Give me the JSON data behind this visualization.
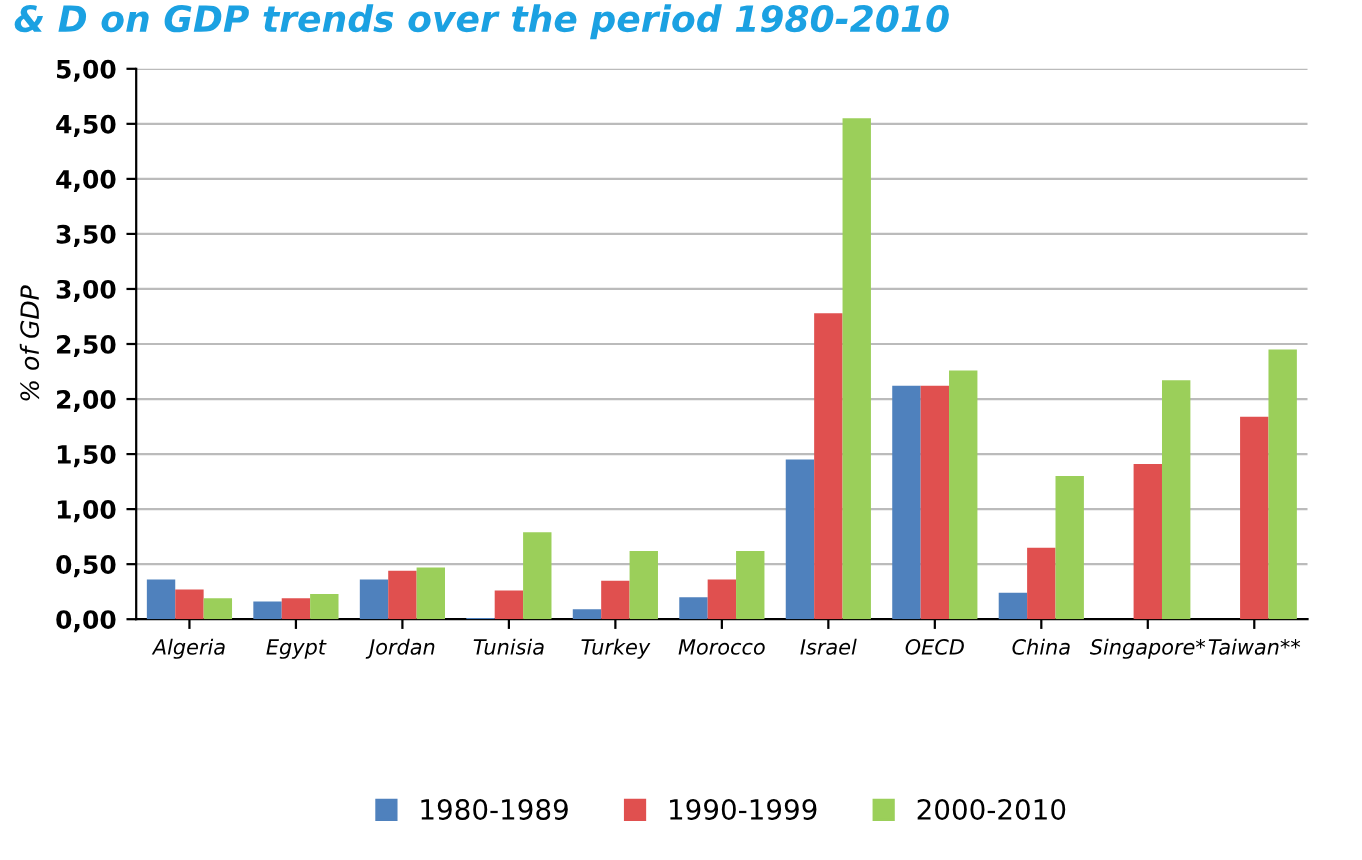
{
  "chart_data": {
    "type": "bar",
    "title": "& D on GDP trends over the period 1980-2010",
    "ylabel": "% of GDP",
    "categories": [
      "Algeria",
      "Egypt",
      "Jordan",
      "Tunisia",
      "Turkey",
      "Morocco",
      "Israel",
      "OECD",
      "China",
      "Singapore*",
      "Taiwan**"
    ],
    "series": [
      {
        "name": "1980-1989",
        "color": "#4f81bd",
        "values": [
          0.36,
          0.16,
          0.36,
          0.01,
          0.09,
          0.2,
          1.45,
          2.12,
          0.24,
          null,
          null
        ]
      },
      {
        "name": "1990-1999",
        "color": "#e0504f",
        "values": [
          0.27,
          0.19,
          0.44,
          0.26,
          0.35,
          0.36,
          2.78,
          2.12,
          0.65,
          1.41,
          1.84
        ]
      },
      {
        "name": "2000-2010",
        "color": "#9bcf5a",
        "values": [
          0.19,
          0.23,
          0.47,
          0.79,
          0.62,
          0.62,
          4.55,
          2.26,
          1.3,
          2.17,
          2.45
        ]
      }
    ],
    "ylim": [
      0,
      5
    ],
    "yticks": [
      {
        "value": 0,
        "label": "0,00"
      },
      {
        "value": 0.5,
        "label": "0,50"
      },
      {
        "value": 1,
        "label": "1,00"
      },
      {
        "value": 1.5,
        "label": "1,50"
      },
      {
        "value": 2,
        "label": "2,00"
      },
      {
        "value": 2.5,
        "label": "2,50"
      },
      {
        "value": 3,
        "label": "3,00"
      },
      {
        "value": 3.5,
        "label": "3,50"
      },
      {
        "value": 4,
        "label": "4,00"
      },
      {
        "value": 4.5,
        "label": "4,50"
      },
      {
        "value": 5,
        "label": "5,00"
      }
    ],
    "grid": "y",
    "legend": "bottom"
  }
}
